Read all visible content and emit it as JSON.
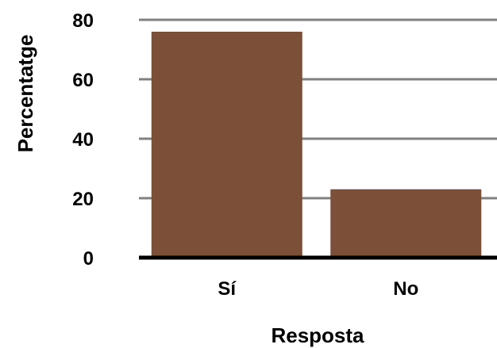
{
  "chart_data": {
    "type": "bar",
    "categories": [
      "Sí",
      "No"
    ],
    "values": [
      76,
      23
    ],
    "xlabel": "Resposta",
    "ylabel": "Percentatge",
    "ylim": [
      0,
      80
    ],
    "yticks": [
      0,
      20,
      40,
      60,
      80
    ],
    "grid": true,
    "legend": "none",
    "colors": {
      "bar": "#7b4f38",
      "gridline": "#808080",
      "axis": "#000000"
    }
  }
}
